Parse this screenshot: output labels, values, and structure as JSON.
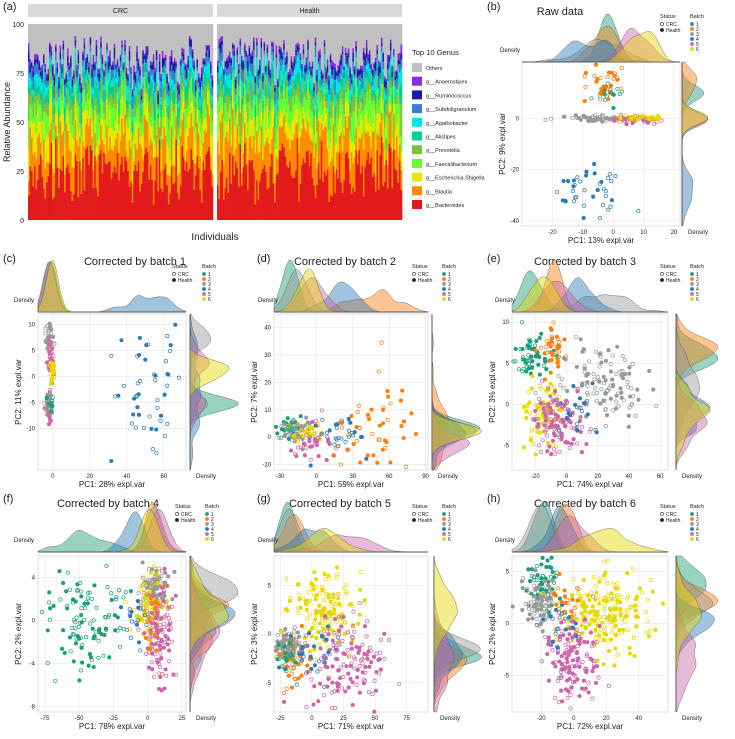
{
  "batch_colors": {
    "1": "#1b9e77",
    "2": "#ff7f0e",
    "3": "#999999",
    "4": "#2c7bb6",
    "5": "#cc66aa",
    "6": "#e6d800"
  },
  "genus_colors": [
    "#c0c0c0",
    "#8a2be2",
    "#1c1ca8",
    "#3a7fd0",
    "#00e5e5",
    "#00cc99",
    "#7cc242",
    "#66ff33",
    "#e6e600",
    "#ff8c00",
    "#e31a1c"
  ],
  "chart_data": [
    {
      "type": "bar",
      "panel": "(a)",
      "title": "",
      "xlabel": "Individuals",
      "ylabel": "Relative Abundance",
      "ylim": [
        0,
        100
      ],
      "yticks": [
        "0",
        "25",
        "50",
        "75",
        "100"
      ],
      "facets": [
        "CRC",
        "Health"
      ],
      "legend_title": "Top 10 Genus",
      "legend": [
        "Others",
        "g__Anaerostipes",
        "g__Ruminococcus",
        "g__Subdoligranulum",
        "g__Agathobacter",
        "g__Alistipes",
        "g__Prevotella",
        "g__Faecalibacterium",
        "g__Escherichia.Shigella",
        "g__Blautia",
        "g__Bacteroides"
      ],
      "series_mean_pct": [
        {
          "name": "Others",
          "values": [
            18,
            17
          ]
        },
        {
          "name": "g__Anaerostipes",
          "values": [
            2,
            2
          ]
        },
        {
          "name": "g__Ruminococcus",
          "values": [
            3,
            3
          ]
        },
        {
          "name": "g__Subdoligranulum",
          "values": [
            4,
            4
          ]
        },
        {
          "name": "g__Agathobacter",
          "values": [
            4,
            5
          ]
        },
        {
          "name": "g__Alistipes",
          "values": [
            5,
            4
          ]
        },
        {
          "name": "g__Prevotella",
          "values": [
            6,
            6
          ]
        },
        {
          "name": "g__Faecalibacterium",
          "values": [
            8,
            9
          ]
        },
        {
          "name": "g__Escherichia.Shigella",
          "values": [
            10,
            9
          ]
        },
        {
          "name": "g__Blautia",
          "values": [
            15,
            16
          ]
        },
        {
          "name": "g__Bacteroides",
          "values": [
            25,
            25
          ]
        }
      ]
    },
    {
      "type": "scatter",
      "panel": "(b)",
      "title": "Raw data",
      "xlabel": "PC1: 13% expl.var",
      "ylabel": "PC2: 9% expl.var",
      "xlim": [
        -30,
        22
      ],
      "ylim": [
        -42,
        22
      ],
      "xticks": [
        -20,
        -10,
        0,
        10,
        20
      ],
      "yticks": [
        -40,
        -20,
        0
      ],
      "top_density_label": "Density",
      "side_density_label": "Density",
      "legend_in_top": true,
      "clusters": [
        {
          "batch": "1",
          "center": [
            -4,
            10
          ],
          "spread": [
            3,
            2
          ],
          "n": 20
        },
        {
          "batch": "2",
          "center": [
            -3,
            14
          ],
          "spread": [
            4,
            4
          ],
          "n": 30
        },
        {
          "batch": "3",
          "center": [
            -5,
            0
          ],
          "spread": [
            7,
            0.6
          ],
          "n": 60
        },
        {
          "batch": "4",
          "center": [
            -8,
            -28
          ],
          "spread": [
            7,
            6
          ],
          "n": 40
        },
        {
          "batch": "5",
          "center": [
            8,
            -0.5
          ],
          "spread": [
            5,
            0.8
          ],
          "n": 40
        },
        {
          "batch": "6",
          "center": [
            10,
            0
          ],
          "spread": [
            5,
            0.8
          ],
          "n": 30
        }
      ]
    },
    {
      "type": "scatter",
      "panel": "(c)",
      "title": "Corrected by batch 1",
      "xlabel": "PC1: 28% expl.var",
      "ylabel": "PC2: 11% expl.var",
      "xlim": [
        -8,
        72
      ],
      "ylim": [
        -18,
        12
      ],
      "xticks": [
        0,
        20,
        40,
        60
      ],
      "yticks": [
        -10,
        -5,
        0,
        5,
        10
      ],
      "top_density_label": "Density",
      "side_density_label": "Density",
      "legend_in_top": true,
      "clusters": [
        {
          "batch": "3",
          "center": [
            -2,
            7
          ],
          "spread": [
            1,
            2
          ],
          "n": 30
        },
        {
          "batch": "5",
          "center": [
            -1,
            3
          ],
          "spread": [
            1,
            2
          ],
          "n": 40
        },
        {
          "batch": "6",
          "center": [
            0,
            1
          ],
          "spread": [
            1,
            1.5
          ],
          "n": 20
        },
        {
          "batch": "5",
          "center": [
            -2,
            -6
          ],
          "spread": [
            1,
            1.5
          ],
          "n": 30
        },
        {
          "batch": "3",
          "center": [
            -2,
            -5
          ],
          "spread": [
            1,
            1.2
          ],
          "n": 20
        },
        {
          "batch": "4",
          "center": [
            52,
            -2
          ],
          "spread": [
            10,
            6
          ],
          "n": 50
        },
        {
          "batch": "1",
          "center": [
            -1,
            -5
          ],
          "spread": [
            1,
            1
          ],
          "n": 10
        }
      ]
    },
    {
      "type": "scatter",
      "panel": "(d)",
      "title": "Corrected by batch 2",
      "xlabel": "PC1: 59% expl.var",
      "ylabel": "PC2: 7% expl.var",
      "xlim": [
        -35,
        92
      ],
      "ylim": [
        -12,
        45
      ],
      "xticks": [
        -30,
        0,
        30,
        60,
        90
      ],
      "yticks": [
        -10,
        0,
        10,
        20,
        30,
        40
      ],
      "top_density_label": "Density",
      "side_density_label": "Density",
      "legend_in_top": true,
      "clusters": [
        {
          "batch": "1",
          "center": [
            -22,
            3
          ],
          "spread": [
            5,
            2
          ],
          "n": 40
        },
        {
          "batch": "3",
          "center": [
            -15,
            2
          ],
          "spread": [
            6,
            2
          ],
          "n": 40
        },
        {
          "batch": "6",
          "center": [
            -10,
            2
          ],
          "spread": [
            6,
            2
          ],
          "n": 30
        },
        {
          "batch": "5",
          "center": [
            -5,
            -2
          ],
          "spread": [
            8,
            3
          ],
          "n": 40
        },
        {
          "batch": "4",
          "center": [
            20,
            0
          ],
          "spread": [
            12,
            4
          ],
          "n": 30
        },
        {
          "batch": "2",
          "center": [
            45,
            4
          ],
          "spread": [
            18,
            8
          ],
          "n": 50
        }
      ]
    },
    {
      "type": "scatter",
      "panel": "(e)",
      "title": "Corrected by batch 3",
      "xlabel": "PC1: 74% expl.var",
      "ylabel": "PC2: 3% expl.var",
      "xlim": [
        -35,
        65
      ],
      "ylim": [
        -8,
        11
      ],
      "xticks": [
        -20,
        0,
        20,
        40,
        60
      ],
      "yticks": [
        -5,
        0,
        5,
        10
      ],
      "top_density_label": "Density",
      "side_density_label": "Density",
      "legend_in_top": true,
      "clusters": [
        {
          "batch": "1",
          "center": [
            -22,
            6
          ],
          "spread": [
            6,
            1.5
          ],
          "n": 60
        },
        {
          "batch": "2",
          "center": [
            -8,
            7
          ],
          "spread": [
            5,
            1.5
          ],
          "n": 40
        },
        {
          "batch": "3",
          "center": [
            22,
            2
          ],
          "spread": [
            14,
            2.5
          ],
          "n": 120
        },
        {
          "batch": "6",
          "center": [
            -15,
            -1
          ],
          "spread": [
            6,
            2
          ],
          "n": 80
        },
        {
          "batch": "5",
          "center": [
            -5,
            -2
          ],
          "spread": [
            8,
            2
          ],
          "n": 120
        },
        {
          "batch": "4",
          "center": [
            10,
            -1
          ],
          "spread": [
            8,
            2
          ],
          "n": 20
        }
      ]
    },
    {
      "type": "scatter",
      "panel": "(f)",
      "title": "Corrected by batch 4",
      "xlabel": "PC1: 78% expl.var",
      "ylabel": "PC2: 2% expl.var",
      "xlim": [
        -80,
        28
      ],
      "ylim": [
        -8.5,
        6
      ],
      "xticks": [
        -75,
        -50,
        -25,
        0,
        25
      ],
      "yticks": [
        -8,
        -4,
        0,
        4
      ],
      "top_density_label": "Density",
      "side_density_label": "Density",
      "legend_in_top": true,
      "clusters": [
        {
          "batch": "1",
          "center": [
            -45,
            0
          ],
          "spread": [
            15,
            2.5
          ],
          "n": 110
        },
        {
          "batch": "3",
          "center": [
            5,
            3
          ],
          "spread": [
            5,
            1.2
          ],
          "n": 100
        },
        {
          "batch": "6",
          "center": [
            0,
            1
          ],
          "spread": [
            5,
            1.5
          ],
          "n": 70
        },
        {
          "batch": "5",
          "center": [
            8,
            -1.5
          ],
          "spread": [
            6,
            2
          ],
          "n": 120
        },
        {
          "batch": "4",
          "center": [
            -10,
            0
          ],
          "spread": [
            8,
            2
          ],
          "n": 20
        },
        {
          "batch": "2",
          "center": [
            5,
            0
          ],
          "spread": [
            6,
            2
          ],
          "n": 20
        }
      ]
    },
    {
      "type": "scatter",
      "panel": "(g)",
      "title": "Corrected by batch 5",
      "xlabel": "PC1: 71% expl.var",
      "ylabel": "PC2: 3% expl.var",
      "xlim": [
        -30,
        92
      ],
      "ylim": [
        -8,
        8
      ],
      "xticks": [
        -25,
        0,
        25,
        50,
        75
      ],
      "yticks": [
        -5,
        0,
        5
      ],
      "top_density_label": "Density",
      "side_density_label": "Density",
      "legend_in_top": true,
      "clusters": [
        {
          "batch": "3",
          "center": [
            -18,
            -1.5
          ],
          "spread": [
            5,
            1
          ],
          "n": 100
        },
        {
          "batch": "6",
          "center": [
            10,
            2.5
          ],
          "spread": [
            14,
            2
          ],
          "n": 150
        },
        {
          "batch": "5",
          "center": [
            25,
            -3
          ],
          "spread": [
            18,
            2.5
          ],
          "n": 150
        },
        {
          "batch": "2",
          "center": [
            -15,
            -3
          ],
          "spread": [
            8,
            1.5
          ],
          "n": 40
        },
        {
          "batch": "4",
          "center": [
            0,
            -2
          ],
          "spread": [
            10,
            1.5
          ],
          "n": 30
        },
        {
          "batch": "1",
          "center": [
            -20,
            -2
          ],
          "spread": [
            4,
            1
          ],
          "n": 20
        }
      ]
    },
    {
      "type": "scatter",
      "panel": "(h)",
      "title": "Corrected by batch 6",
      "xlabel": "PC1: 72% expl.var",
      "ylabel": "PC2: 2% expl.var",
      "xlim": [
        -38,
        58
      ],
      "ylim": [
        -8.5,
        6.5
      ],
      "xticks": [
        -20,
        0,
        20,
        40
      ],
      "yticks": [
        -5,
        0,
        5
      ],
      "top_density_label": "Density",
      "side_density_label": "Density",
      "legend_in_top": true,
      "clusters": [
        {
          "batch": "1",
          "center": [
            -18,
            4
          ],
          "spread": [
            5,
            1.2
          ],
          "n": 60
        },
        {
          "batch": "3",
          "center": [
            -20,
            2
          ],
          "spread": [
            5,
            1.2
          ],
          "n": 80
        },
        {
          "batch": "6",
          "center": [
            18,
            1
          ],
          "spread": [
            14,
            2
          ],
          "n": 200
        },
        {
          "batch": "5",
          "center": [
            0,
            -3.5
          ],
          "spread": [
            8,
            2
          ],
          "n": 150
        },
        {
          "batch": "4",
          "center": [
            -10,
            0
          ],
          "spread": [
            5,
            1
          ],
          "n": 20
        },
        {
          "batch": "2",
          "center": [
            -5,
            2
          ],
          "spread": [
            6,
            1
          ],
          "n": 20
        }
      ]
    }
  ],
  "status_legend": {
    "title": "Status",
    "items": [
      "CRC",
      "Health"
    ]
  },
  "batch_legend": {
    "title": "Batch",
    "items": [
      "1",
      "2",
      "3",
      "4",
      "5",
      "6"
    ]
  }
}
